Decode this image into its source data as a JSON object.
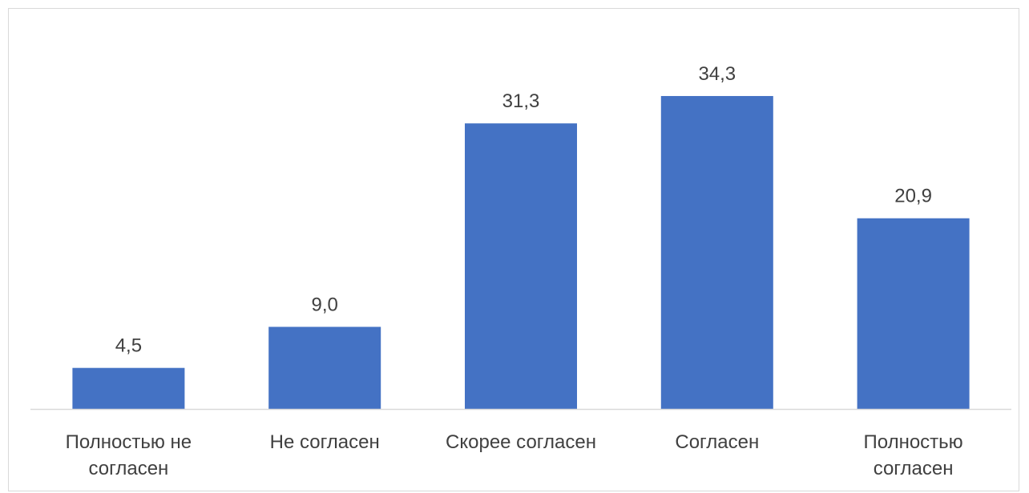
{
  "chart_data": {
    "type": "bar",
    "categories": [
      [
        "Полностью не",
        "согласен"
      ],
      [
        "Не согласен"
      ],
      [
        "Скорее согласен"
      ],
      [
        "Согласен"
      ],
      [
        "Полностью",
        "согласен"
      ]
    ],
    "values": [
      4.5,
      9.0,
      31.3,
      34.3,
      20.9
    ],
    "data_labels": [
      "4,5",
      "9,0",
      "31,3",
      "34,3",
      "20,9"
    ],
    "ylim": [
      0,
      40
    ],
    "grid": false,
    "legend": "none",
    "colors": {
      "bar": "#4472c4",
      "axis": "#d9d9d9",
      "text": "#404040"
    }
  }
}
